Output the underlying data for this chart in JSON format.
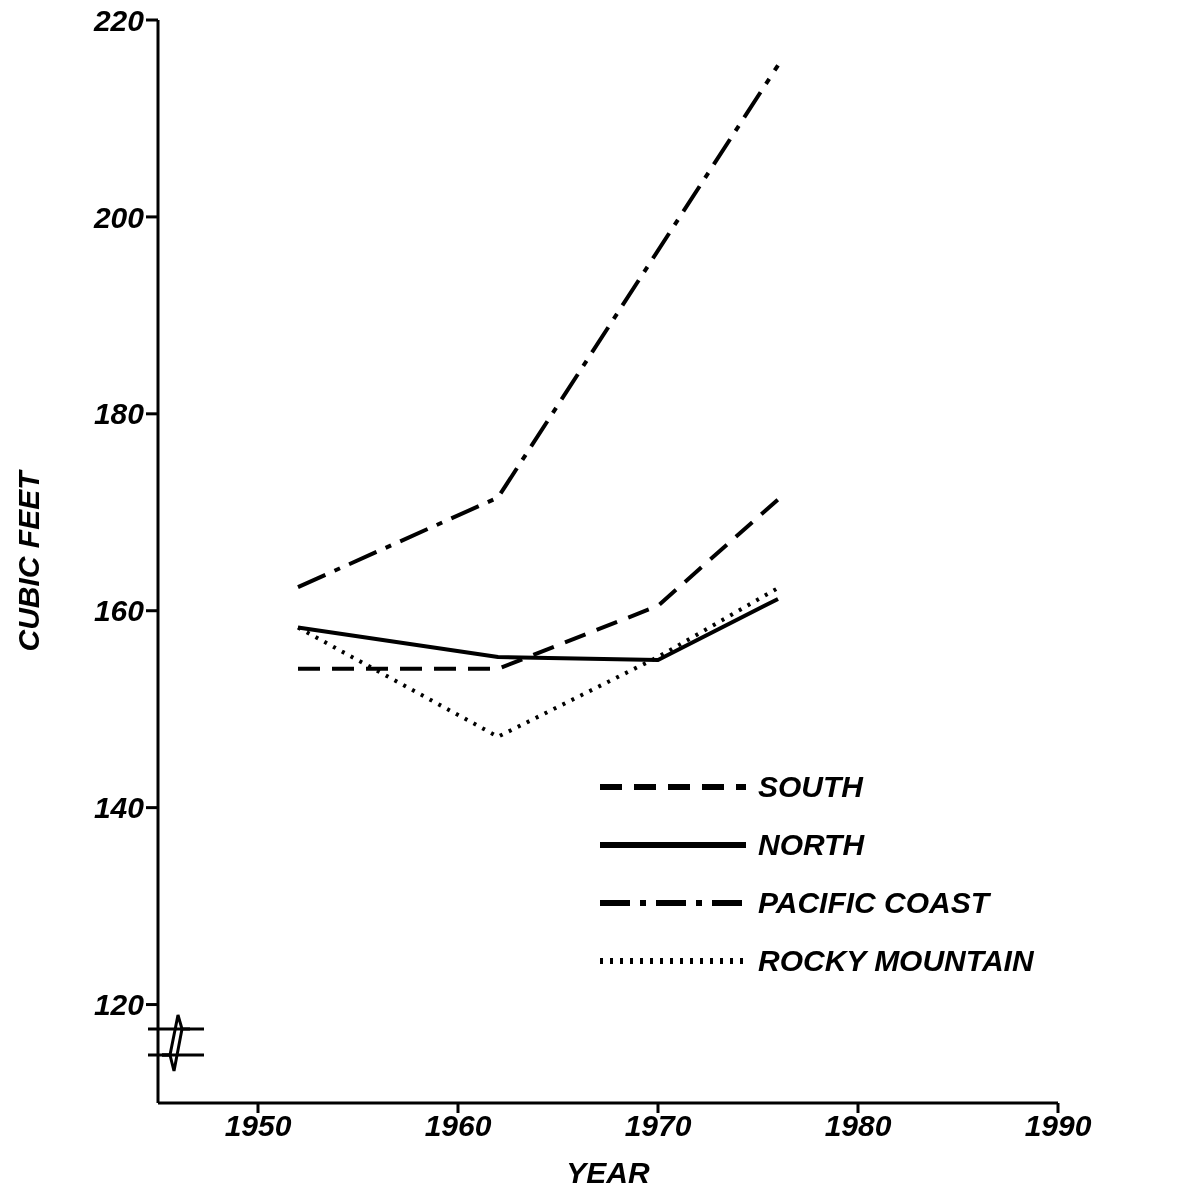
{
  "chart_data": {
    "type": "line",
    "xlabel": "YEAR",
    "ylabel": "CUBIC FEET",
    "xlim": [
      1945,
      1990
    ],
    "xticks": [
      1950,
      1960,
      1970,
      1980,
      1990
    ],
    "ylim": [
      110,
      220
    ],
    "yticks": [
      120,
      140,
      160,
      180,
      200,
      220
    ],
    "grid": false,
    "legend": "bottom right",
    "marker": "none",
    "series": [
      {
        "name": "SOUTH",
        "color": "#000000",
        "line_style": "dashed",
        "x": [
          1952,
          1962,
          1970,
          1976
        ],
        "values": [
          154.1,
          154.1,
          160.5,
          171.3
        ]
      },
      {
        "name": "NORTH",
        "color": "#000000",
        "line_style": "solid",
        "x": [
          1952,
          1962,
          1970,
          1976
        ],
        "values": [
          158.3,
          155.3,
          155,
          161.2
        ]
      },
      {
        "name": "PACIFIC COAST",
        "color": "#000000",
        "line_style": "dashdot",
        "x": [
          1952,
          1962,
          1976
        ],
        "values": [
          162.4,
          171.5,
          215.4
        ]
      },
      {
        "name": "ROCKY MOUNTAIN",
        "color": "#000000",
        "line_style": "dotted",
        "x": [
          1952,
          1962,
          1970,
          1976
        ],
        "values": [
          158.3,
          147.2,
          155.3,
          162.3
        ]
      }
    ]
  }
}
